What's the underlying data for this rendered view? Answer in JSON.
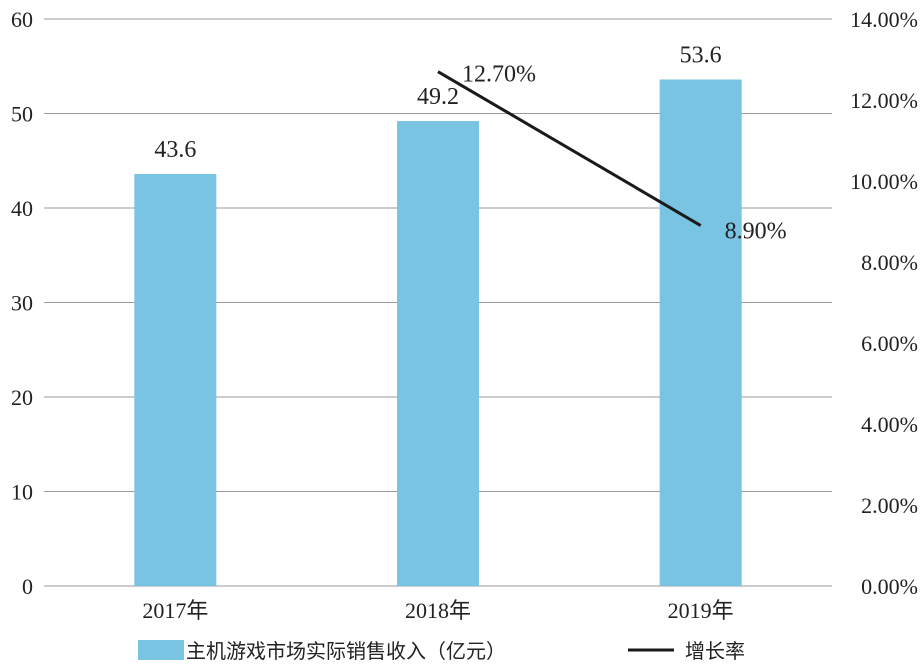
{
  "chart_data": {
    "type": "bar+line",
    "categories": [
      "2017年",
      "2018年",
      "2019年"
    ],
    "series": [
      {
        "name": "主机游戏市场实际销售收入（亿元）",
        "type": "bar",
        "axis": "left",
        "color": "#79c3e3",
        "values": [
          43.6,
          49.2,
          53.6
        ],
        "labels": [
          "43.6",
          "49.2",
          "53.6"
        ]
      },
      {
        "name": "增长率",
        "type": "line",
        "axis": "right",
        "color": "#1a1a1a",
        "x": [
          "2018年",
          "2019年"
        ],
        "values": [
          12.7,
          8.9
        ],
        "labels": [
          "12.70%",
          "8.90%"
        ]
      }
    ],
    "y_left": {
      "ylim": [
        0,
        60
      ],
      "ticks": [
        "0",
        "10",
        "20",
        "30",
        "40",
        "50",
        "60"
      ]
    },
    "y_right": {
      "ylim": [
        0,
        14
      ],
      "ticks": [
        "0.00%",
        "2.00%",
        "4.00%",
        "6.00%",
        "8.00%",
        "10.00%",
        "12.00%",
        "14.00%"
      ]
    },
    "grid": true,
    "legend_position": "bottom"
  }
}
